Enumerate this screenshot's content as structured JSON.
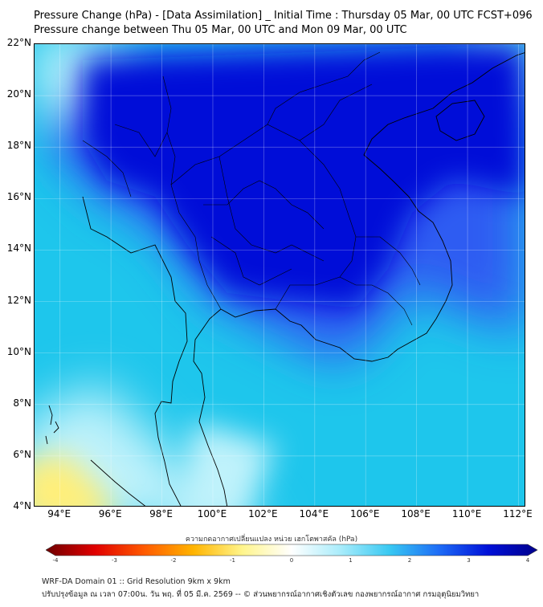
{
  "header": {
    "title": "Pressure Change (hPa) - [Data Assimilation] _ Initial Time : Thursday 05 Mar, 00 UTC FCST+096",
    "subtitle": "Pressure change between Thu 05 Mar, 00 UTC and Mon 09 Mar, 00 UTC"
  },
  "map": {
    "lat_labels": [
      "22°N",
      "20°N",
      "18°N",
      "16°N",
      "14°N",
      "12°N",
      "10°N",
      "8°N",
      "6°N",
      "4°N"
    ],
    "lon_labels": [
      "94°E",
      "96°E",
      "98°E",
      "100°E",
      "102°E",
      "104°E",
      "106°E",
      "108°E",
      "110°E",
      "112°E"
    ],
    "lat_range": [
      4,
      22
    ],
    "lon_range": [
      93,
      112.3
    ],
    "background_color": "#1ec6ec",
    "colors": {
      "deep_blue": "#0008d8",
      "blue": "#2f5cf2",
      "cyan": "#24c8f0",
      "light_cyan": "#bff2fb",
      "yellow": "#ffef7a",
      "coast": "#000000"
    }
  },
  "colorbar": {
    "title": "ความกดอากาศเปลี่ยนแปลง หน่วย เฮกโตพาสคัล (hPa)",
    "ticks": [
      "-4",
      "-3",
      "-2",
      "-1",
      "0",
      "1",
      "2",
      "3",
      "4"
    ],
    "range": [
      -4,
      4
    ],
    "stops": [
      "#6e0000",
      "#e00000",
      "#ff5a00",
      "#ffb400",
      "#fff58c",
      "#ffffff",
      "#a8ecfb",
      "#38c8f2",
      "#1e6cf6",
      "#0010d8",
      "#00008c"
    ]
  },
  "footer": {
    "line1": "WRF-DA Domain 01 :: Grid Resolution 9km x 9km",
    "line2": "ปรับปรุงข้อมูล ณ เวลา 07:00น. วัน พฤ. ที่ 05 มี.ค. 2569 -- © ส่วนพยากรณ์อากาศเชิงตัวเลข กองพยากรณ์อากาศ กรมอุตุนิยมวิทยา"
  }
}
